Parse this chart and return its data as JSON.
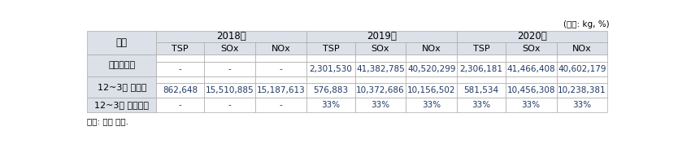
{
  "unit_label": "(단위: kg, %)",
  "source_label": "자료: 저자 작성.",
  "row1_label": "목표배출량",
  "row2_label": "12~3월 배출량",
  "row3_label": "12~3월 감축비율",
  "gubun_label": "구분",
  "year2018": "2018년",
  "year2019": "2019년",
  "year2020": "2020년",
  "row1_data": [
    "-",
    "-",
    "-",
    "2,301,530",
    "41,382,785",
    "40,520,299",
    "2,306,181",
    "41,466,408",
    "40,602,179"
  ],
  "row2_data": [
    "862,648",
    "15,510,885",
    "15,187,613",
    "576,883",
    "10,372,686",
    "10,156,502",
    "581,534",
    "10,456,308",
    "10,238,381"
  ],
  "row3_data": [
    "-",
    "-",
    "-",
    "33%",
    "33%",
    "33%",
    "33%",
    "33%",
    "33%"
  ],
  "header_bg": "#dce0e8",
  "data_bg": "#ffffff",
  "border_color": "#aaaaaa",
  "text_color_header": "#000000",
  "text_color_data": "#1f3864",
  "fontsize_year": 8.5,
  "fontsize_pollutant": 8.0,
  "fontsize_row_label": 8.0,
  "fontsize_data": 7.5,
  "fontsize_unit": 7.5,
  "fontsize_source": 7.5
}
